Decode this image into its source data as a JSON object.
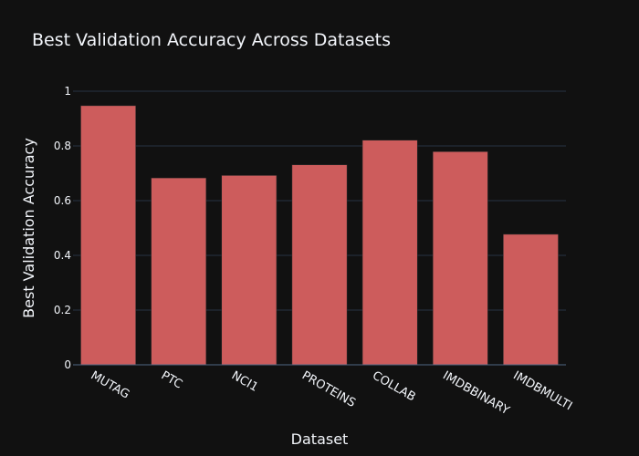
{
  "chart_data": {
    "type": "bar",
    "title": "Best Validation Accuracy Across Datasets",
    "xlabel": "Dataset",
    "ylabel": "Best Validation Accuracy",
    "categories": [
      "MUTAG",
      "PTC",
      "NCI1",
      "PROTEINS",
      "COLLAB",
      "IMDBBINARY",
      "IMDBMULTI"
    ],
    "values": [
      0.947,
      0.683,
      0.692,
      0.731,
      0.821,
      0.779,
      0.477
    ],
    "ylim": [
      0,
      1
    ],
    "yticks": [
      0,
      0.2,
      0.4,
      0.6,
      0.8,
      1
    ],
    "ytick_labels": [
      "0",
      "0.2",
      "0.4",
      "0.6",
      "0.8",
      "1"
    ],
    "grid": true,
    "colors": {
      "bar": "#cd5c5c",
      "background": "#111111",
      "grid": "#283442",
      "text": "#f2f5fa"
    }
  }
}
